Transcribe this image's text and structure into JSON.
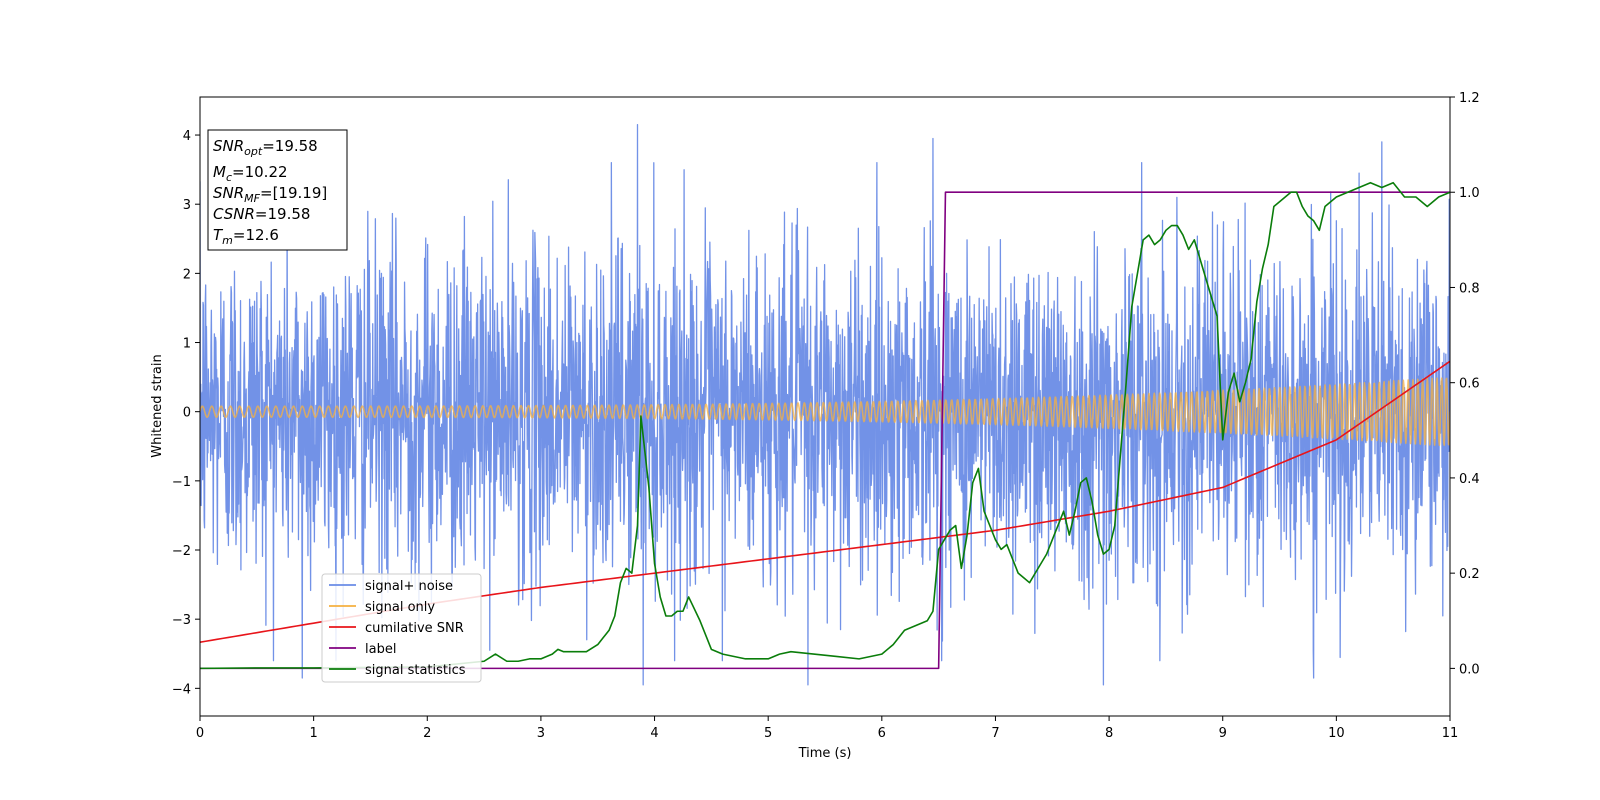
{
  "chart_data": {
    "type": "line",
    "title": "",
    "xlabel": "Time (s)",
    "ylabel": "Whitened strain",
    "xlim": [
      0,
      11
    ],
    "ylim": [
      -4.4,
      4.55
    ],
    "y2lim": [
      -0.1,
      1.2
    ],
    "x_ticks": [
      0,
      1,
      2,
      3,
      4,
      5,
      6,
      7,
      8,
      9,
      10,
      11
    ],
    "y_ticks": [
      -4,
      -3,
      -2,
      -1,
      0,
      1,
      2,
      3,
      4
    ],
    "y2_ticks": [
      0.0,
      0.2,
      0.4,
      0.6,
      0.8,
      1.0,
      1.2
    ],
    "y2_tick_labels": [
      "0.0",
      "0.2",
      "0.4",
      "0.6",
      "0.8",
      "1.0",
      "1.2"
    ],
    "grid": false,
    "legend_position": "lower-left",
    "annotation": {
      "lines": [
        {
          "main": "SNR",
          "sub": "opt",
          "value": "=19.58",
          "italic": true
        },
        {
          "main": "M",
          "sub": "c",
          "value": "=10.22",
          "italic": true
        },
        {
          "main": "SNR",
          "sub": "MF",
          "value": "=[19.19]",
          "italic": true
        },
        {
          "main": "CSNR",
          "sub": "",
          "value": "=19.58",
          "italic": true
        },
        {
          "main": "T",
          "sub": "m",
          "value": "=12.6",
          "italic": true
        }
      ]
    },
    "series": [
      {
        "name": "signal+ noise",
        "axis": "left",
        "color": "#6a8ce6",
        "kind": "noise",
        "noise_std": 1.2,
        "peaks": [
          [
            3.85,
            4.15
          ],
          [
            3.9,
            -3.95
          ],
          [
            6.45,
            3.95
          ],
          [
            10.4,
            3.9
          ],
          [
            7.95,
            -3.95
          ],
          [
            0.9,
            -3.85
          ],
          [
            9.8,
            -3.85
          ],
          [
            5.35,
            -3.95
          ]
        ]
      },
      {
        "name": "signal only",
        "axis": "left",
        "color": "#f5b041",
        "kind": "chirp",
        "amplitude_start": 0.08,
        "amplitude_end": 0.5,
        "cycles_start_per_s": 12,
        "cycles_end_per_s": 24
      },
      {
        "name": "cumilative SNR",
        "axis": "right",
        "color": "#e8141a",
        "x": [
          0,
          1,
          2,
          3,
          4,
          5,
          6,
          7,
          8,
          9,
          10,
          11
        ],
        "y": [
          0.055,
          0.095,
          0.135,
          0.17,
          0.2,
          0.23,
          0.26,
          0.29,
          0.33,
          0.38,
          0.48,
          0.645
        ]
      },
      {
        "name": "label",
        "axis": "right",
        "color": "#800080",
        "x": [
          0,
          6.5,
          6.56,
          11
        ],
        "y": [
          0.0,
          0.0,
          1.0,
          1.0
        ]
      },
      {
        "name": "signal statistics",
        "axis": "right",
        "color": "#0a7d0a",
        "x": [
          0,
          0.5,
          1,
          1.5,
          2,
          2.5,
          2.6,
          2.7,
          2.8,
          2.9,
          3.0,
          3.1,
          3.15,
          3.2,
          3.4,
          3.5,
          3.55,
          3.6,
          3.65,
          3.7,
          3.75,
          3.8,
          3.85,
          3.88,
          3.95,
          4.0,
          4.05,
          4.1,
          4.15,
          4.2,
          4.25,
          4.3,
          4.4,
          4.5,
          4.6,
          4.8,
          5.0,
          5.1,
          5.2,
          5.4,
          5.6,
          5.8,
          5.9,
          6.0,
          6.1,
          6.2,
          6.3,
          6.4,
          6.45,
          6.5,
          6.55,
          6.6,
          6.65,
          6.7,
          6.75,
          6.8,
          6.85,
          6.9,
          7.0,
          7.05,
          7.1,
          7.15,
          7.2,
          7.25,
          7.3,
          7.35,
          7.4,
          7.45,
          7.5,
          7.55,
          7.6,
          7.65,
          7.7,
          7.75,
          7.8,
          7.85,
          7.9,
          7.95,
          8.0,
          8.05,
          8.1,
          8.15,
          8.2,
          8.25,
          8.3,
          8.35,
          8.4,
          8.45,
          8.5,
          8.55,
          8.6,
          8.65,
          8.7,
          8.75,
          8.8,
          8.9,
          8.95,
          9.0,
          9.05,
          9.1,
          9.15,
          9.2,
          9.25,
          9.3,
          9.35,
          9.4,
          9.45,
          9.5,
          9.55,
          9.6,
          9.65,
          9.7,
          9.75,
          9.8,
          9.85,
          9.9,
          10.0,
          10.1,
          10.2,
          10.3,
          10.4,
          10.5,
          10.6,
          10.7,
          10.8,
          10.9,
          11.0
        ],
        "y": [
          0.0,
          0.001,
          0.001,
          0.002,
          0.003,
          0.015,
          0.03,
          0.015,
          0.015,
          0.02,
          0.02,
          0.03,
          0.04,
          0.035,
          0.035,
          0.05,
          0.065,
          0.08,
          0.11,
          0.18,
          0.21,
          0.2,
          0.3,
          0.53,
          0.38,
          0.22,
          0.15,
          0.11,
          0.11,
          0.12,
          0.12,
          0.15,
          0.1,
          0.04,
          0.03,
          0.02,
          0.02,
          0.03,
          0.035,
          0.03,
          0.025,
          0.02,
          0.025,
          0.03,
          0.05,
          0.08,
          0.09,
          0.1,
          0.12,
          0.25,
          0.27,
          0.29,
          0.3,
          0.21,
          0.28,
          0.39,
          0.42,
          0.33,
          0.27,
          0.25,
          0.26,
          0.23,
          0.2,
          0.19,
          0.18,
          0.2,
          0.22,
          0.24,
          0.27,
          0.3,
          0.33,
          0.28,
          0.33,
          0.39,
          0.4,
          0.35,
          0.28,
          0.24,
          0.25,
          0.3,
          0.45,
          0.6,
          0.76,
          0.83,
          0.9,
          0.91,
          0.89,
          0.9,
          0.92,
          0.93,
          0.93,
          0.91,
          0.88,
          0.9,
          0.86,
          0.78,
          0.74,
          0.48,
          0.58,
          0.62,
          0.56,
          0.6,
          0.65,
          0.77,
          0.84,
          0.89,
          0.97,
          0.98,
          0.99,
          1.0,
          1.0,
          0.97,
          0.95,
          0.94,
          0.92,
          0.97,
          0.99,
          1.0,
          1.01,
          1.02,
          1.01,
          1.02,
          0.99,
          0.99,
          0.97,
          0.99,
          1.0
        ]
      }
    ]
  }
}
